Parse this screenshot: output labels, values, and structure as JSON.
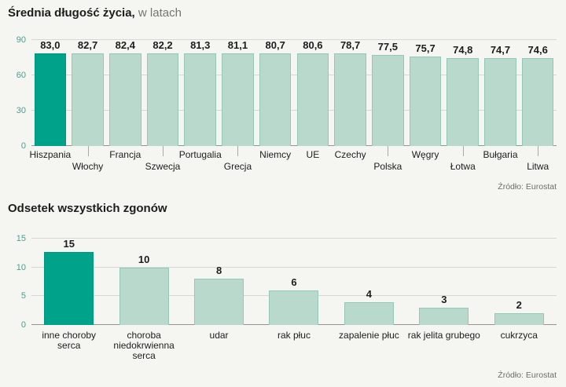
{
  "colors": {
    "highlight": "#00a38a",
    "bar": "#bad9cd",
    "bar_border": "#95c8b6",
    "highlight_border": "#00967e",
    "axis_text": "#45a28e",
    "grid": "#d8d8d2",
    "baseline": "#95958d",
    "text": "#1d1d1b",
    "subtitle_text": "#757570",
    "source_text": "#6e6e67",
    "background": "#f5f5f2"
  },
  "chart_data": [
    {
      "type": "bar",
      "title": "Średnia długość życia,",
      "subtitle": "w latach",
      "categories": [
        "Hiszpania",
        "Włochy",
        "Francja",
        "Szwecja",
        "Portugalia",
        "Grecja",
        "Niemcy",
        "UE",
        "Czechy",
        "Polska",
        "Węgry",
        "Łotwa",
        "Bułgaria",
        "Litwa"
      ],
      "values": [
        83.0,
        82.7,
        82.4,
        82.2,
        81.3,
        81.1,
        80.7,
        80.6,
        78.7,
        77.5,
        75.7,
        74.8,
        74.7,
        74.6
      ],
      "value_labels": [
        "83,0",
        "82,7",
        "82,4",
        "82,2",
        "81,3",
        "81,1",
        "80,7",
        "80,6",
        "78,7",
        "77,5",
        "75,7",
        "74,8",
        "74,7",
        "74,6"
      ],
      "label_rows": [
        1,
        2,
        1,
        2,
        1,
        2,
        1,
        1,
        1,
        2,
        1,
        2,
        1,
        2
      ],
      "yticks": [
        0,
        30,
        60,
        90
      ],
      "ylim": [
        0,
        90
      ],
      "highlight_index": 0,
      "grid": true,
      "legend": "none",
      "source": "Źródło: Eurostat"
    },
    {
      "type": "bar",
      "title": "Odsetek wszystkich zgonów",
      "subtitle": "",
      "categories": [
        "inne choroby serca",
        "choroba niedokrwienna serca",
        "udar",
        "rak płuc",
        "zapalenie płuc",
        "rak jelita grubego",
        "cukrzyca"
      ],
      "values": [
        15,
        10,
        8,
        6,
        4,
        3,
        2
      ],
      "value_labels": [
        "15",
        "10",
        "8",
        "6",
        "4",
        "3",
        "2"
      ],
      "label_rows": [
        1,
        1,
        1,
        1,
        1,
        1,
        1
      ],
      "yticks": [
        0,
        5,
        10,
        15
      ],
      "ylim": [
        0,
        15
      ],
      "highlight_index": 0,
      "grid": true,
      "legend": "none",
      "source": "Źródło: Eurostat"
    }
  ]
}
